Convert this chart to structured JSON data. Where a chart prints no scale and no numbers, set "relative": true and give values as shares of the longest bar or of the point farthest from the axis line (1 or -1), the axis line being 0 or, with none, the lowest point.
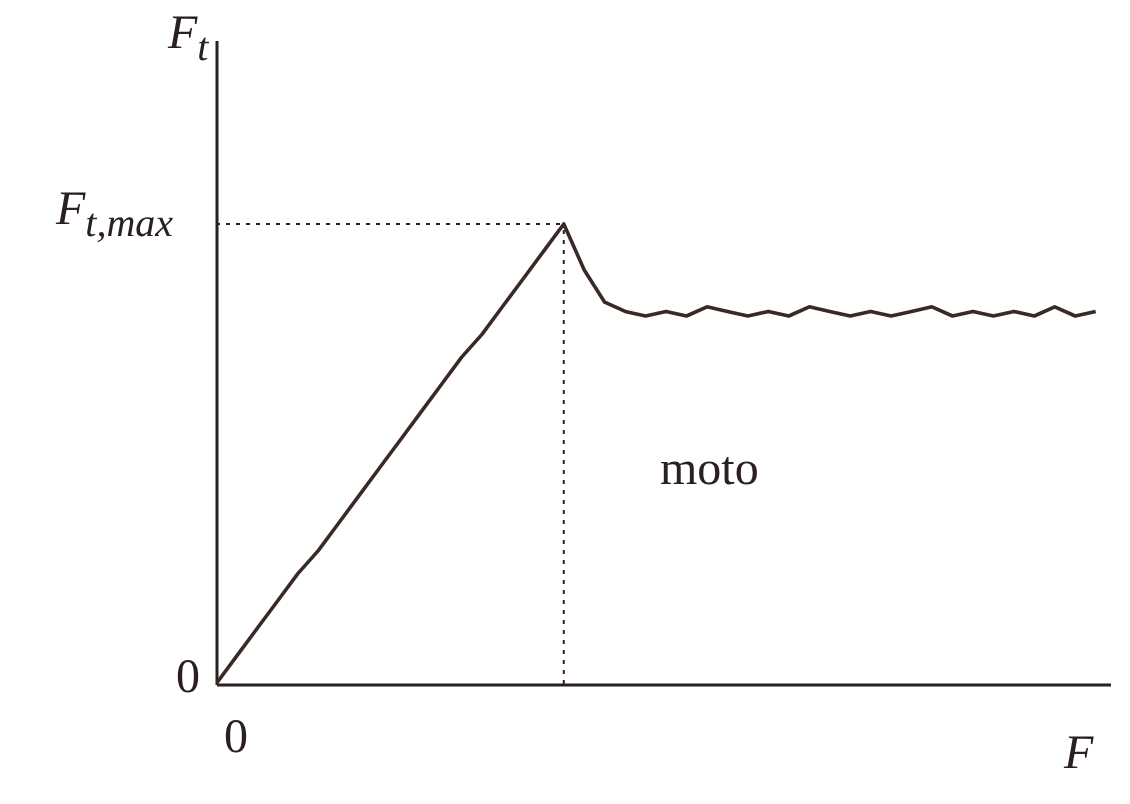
{
  "chart_data": {
    "type": "line",
    "relative": true,
    "xlabel": "F",
    "ylabel": "F$_{t}$",
    "categories": [
      null,
      null,
      null,
      null,
      null,
      null,
      null,
      null,
      null,
      null,
      null,
      null,
      null,
      null,
      null,
      null,
      null,
      null,
      null,
      null,
      null,
      null,
      null,
      null,
      null,
      null,
      null,
      null,
      null,
      null,
      null,
      null,
      null,
      null,
      null,
      null,
      null,
      null,
      null,
      null,
      null,
      null,
      null,
      null
    ],
    "series": [
      {
        "color": "#3a2a25",
        "values": [
          0,
          0.06,
          0.12,
          0.18,
          0.24,
          0.29,
          0.35,
          0.41,
          0.47,
          0.53,
          0.59,
          0.65,
          0.71,
          0.76,
          0.82,
          0.88,
          0.94,
          1,
          0.9,
          0.83,
          0.81,
          0.8,
          0.81,
          0.8,
          0.82,
          0.81,
          0.8,
          0.81,
          0.8,
          0.82,
          0.81,
          0.8,
          0.81,
          0.8,
          0.81,
          0.82,
          0.8,
          0.81,
          0.8,
          0.81,
          0.8,
          0.82,
          0.8,
          0.81
        ]
      }
    ],
    "ref_lines": [
      {
        "axis": "y",
        "value": 1,
        "label": "F$_{t,max}$",
        "line_style": "dotted"
      }
    ],
    "annotations": [
      "0",
      "0",
      "moto"
    ]
  }
}
